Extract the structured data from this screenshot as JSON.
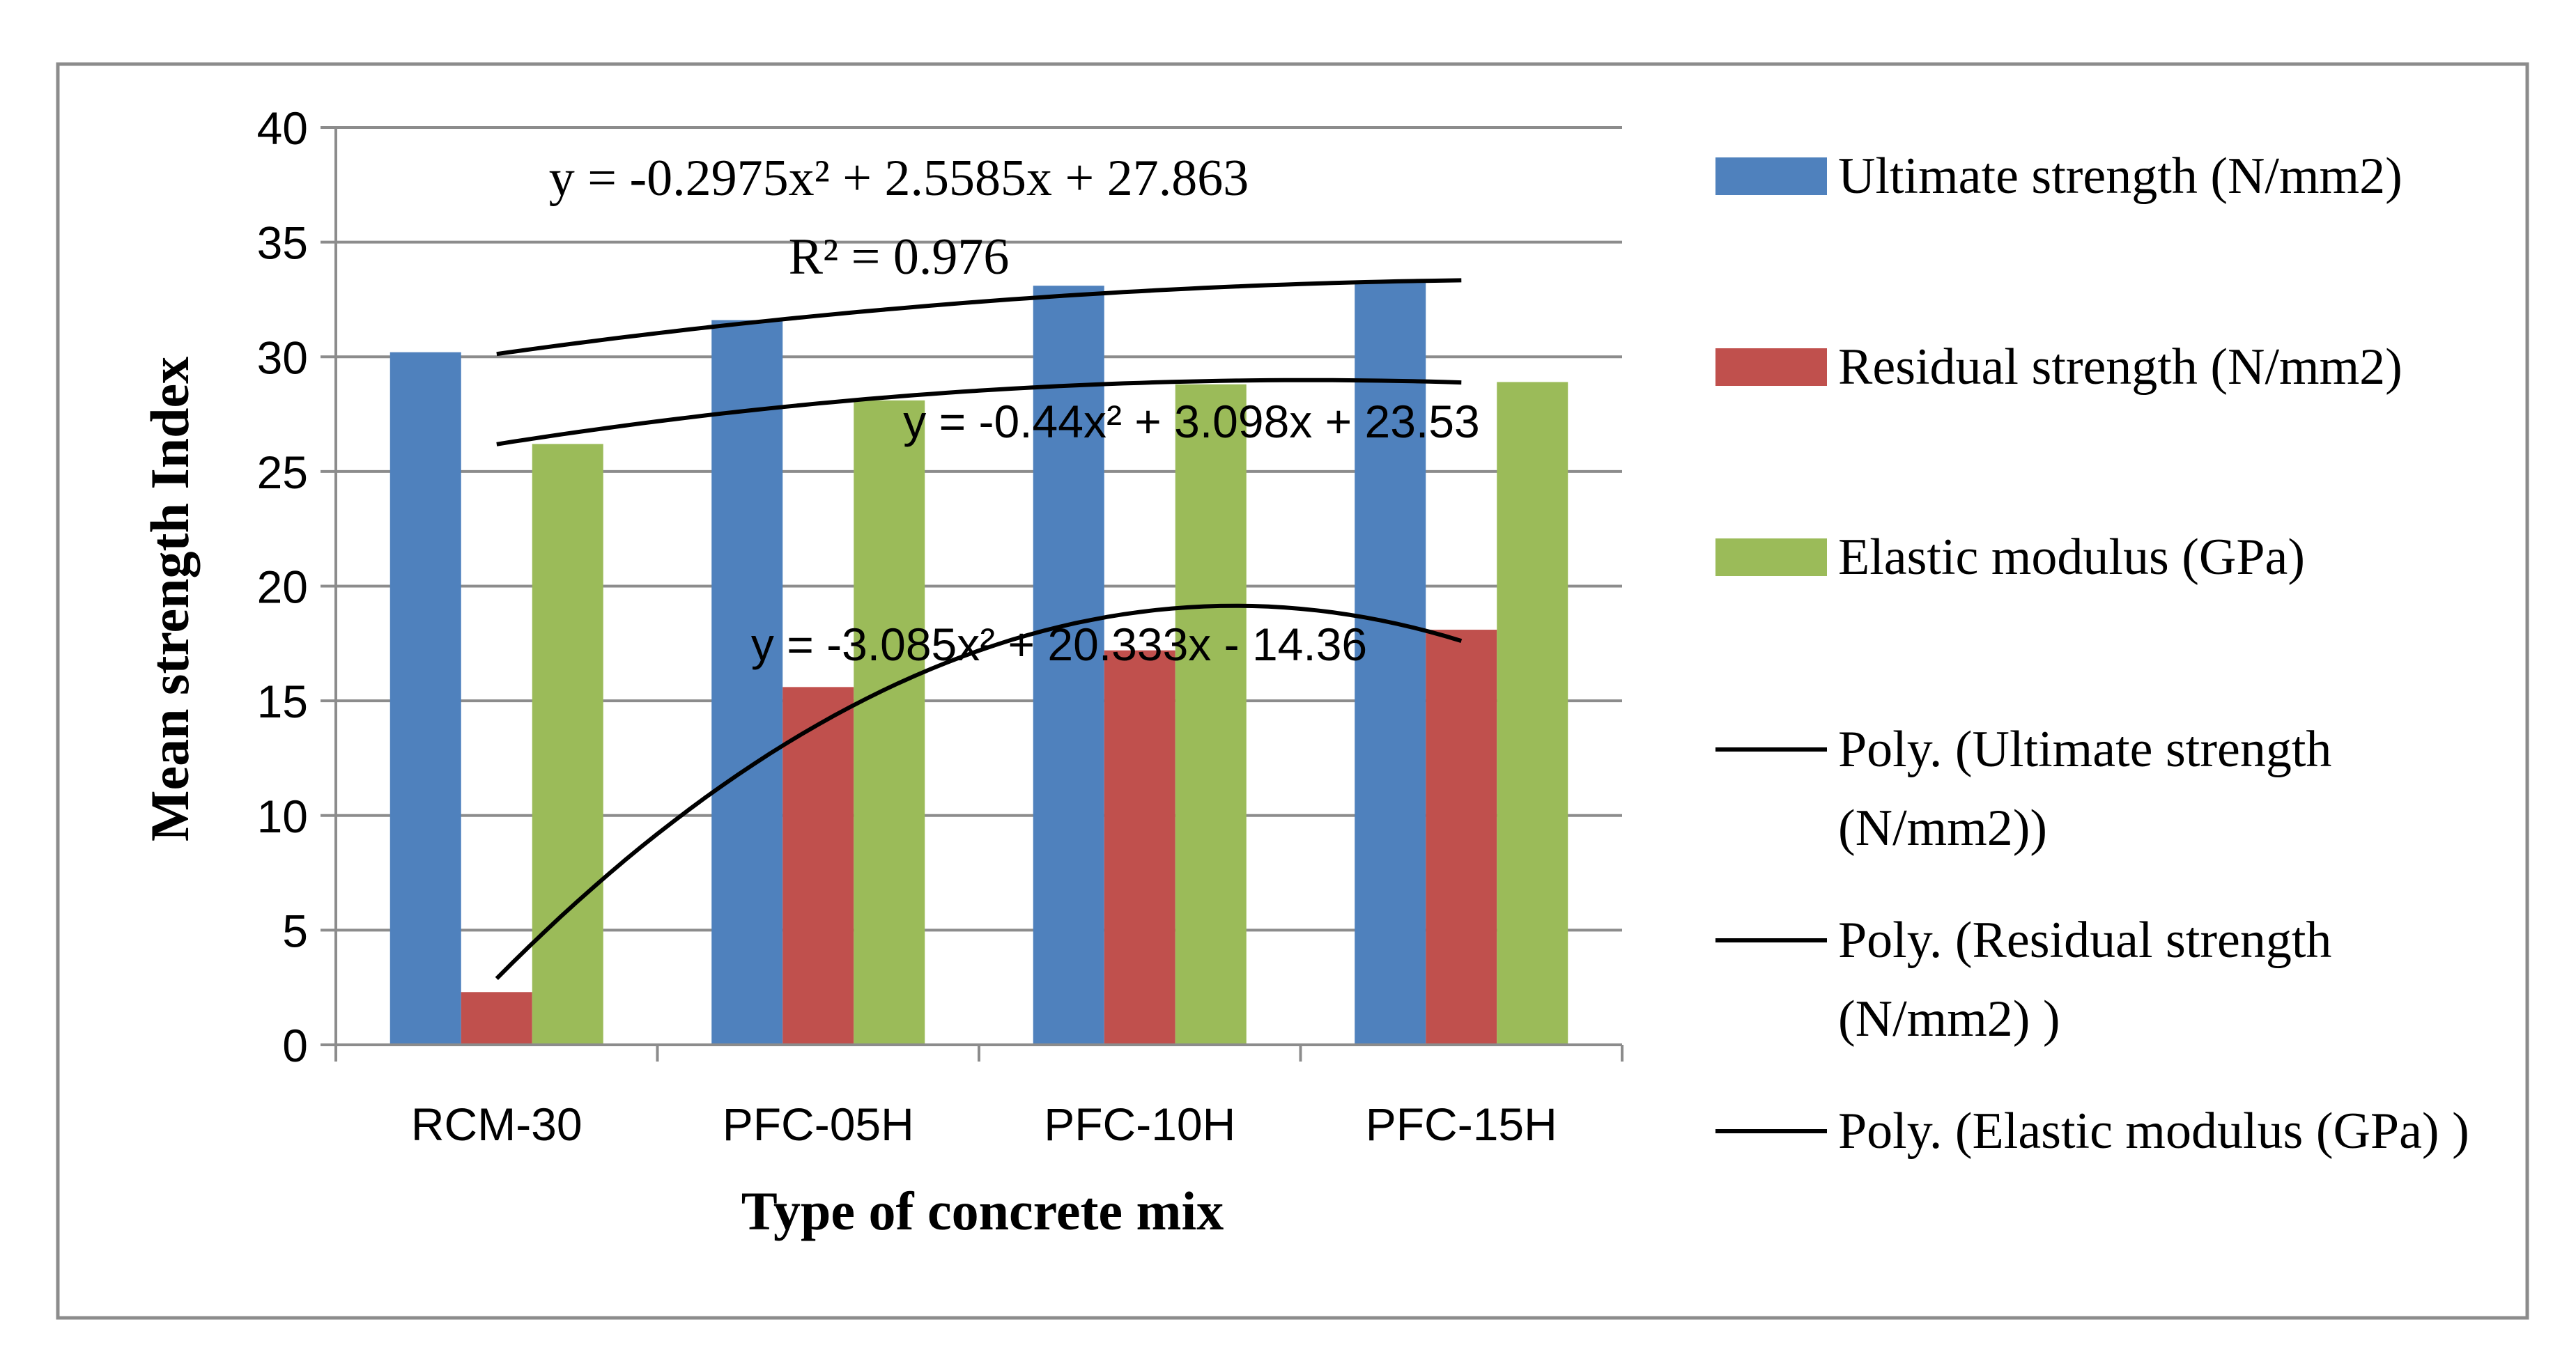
{
  "chart_data": {
    "type": "bar",
    "title": "",
    "xlabel": "Type of concrete mix",
    "ylabel": "Mean strength Index",
    "ylim": [
      0,
      40
    ],
    "yticks": [
      "0",
      "5",
      "10",
      "15",
      "20",
      "25",
      "30",
      "35",
      "40"
    ],
    "categories": [
      "RCM-30",
      "PFC-05H",
      "PFC-10H",
      "PFC-15H"
    ],
    "series": [
      {
        "name": "Ultimate  strength (N/mm2)",
        "color": "#4F81BD",
        "values": [
          30.2,
          31.6,
          33.1,
          33.3
        ]
      },
      {
        "name": "Residual strength (N/mm2)",
        "color": "#C0504D",
        "values": [
          2.3,
          15.6,
          17.2,
          18.1
        ]
      },
      {
        "name": "Elastic modulus (GPa)",
        "color": "#9BBB59",
        "values": [
          26.2,
          28.1,
          28.8,
          28.9
        ]
      }
    ],
    "trendlines": [
      {
        "name": "Poly. (Ultimate  strength (N/mm2))",
        "color": "#000000",
        "coef": [
          -0.2975,
          2.5585,
          27.863
        ],
        "equation": "y = -0.2975x² + 2.5585x + 27.863",
        "r2": "R² = 0.976"
      },
      {
        "name": "Poly. (Residual strength (N/mm2) )",
        "color": "#000000",
        "coef": [
          -3.085,
          20.333,
          -14.36
        ],
        "equation": "y = -3.085x² + 20.333x - 14.36"
      },
      {
        "name": "Poly. (Elastic modulus (GPa) )",
        "color": "#000000",
        "coef": [
          -0.44,
          3.098,
          23.53
        ],
        "equation": "y = -0.44x² + 3.098x + 23.53"
      }
    ],
    "legend_position": "right",
    "grid": true
  }
}
